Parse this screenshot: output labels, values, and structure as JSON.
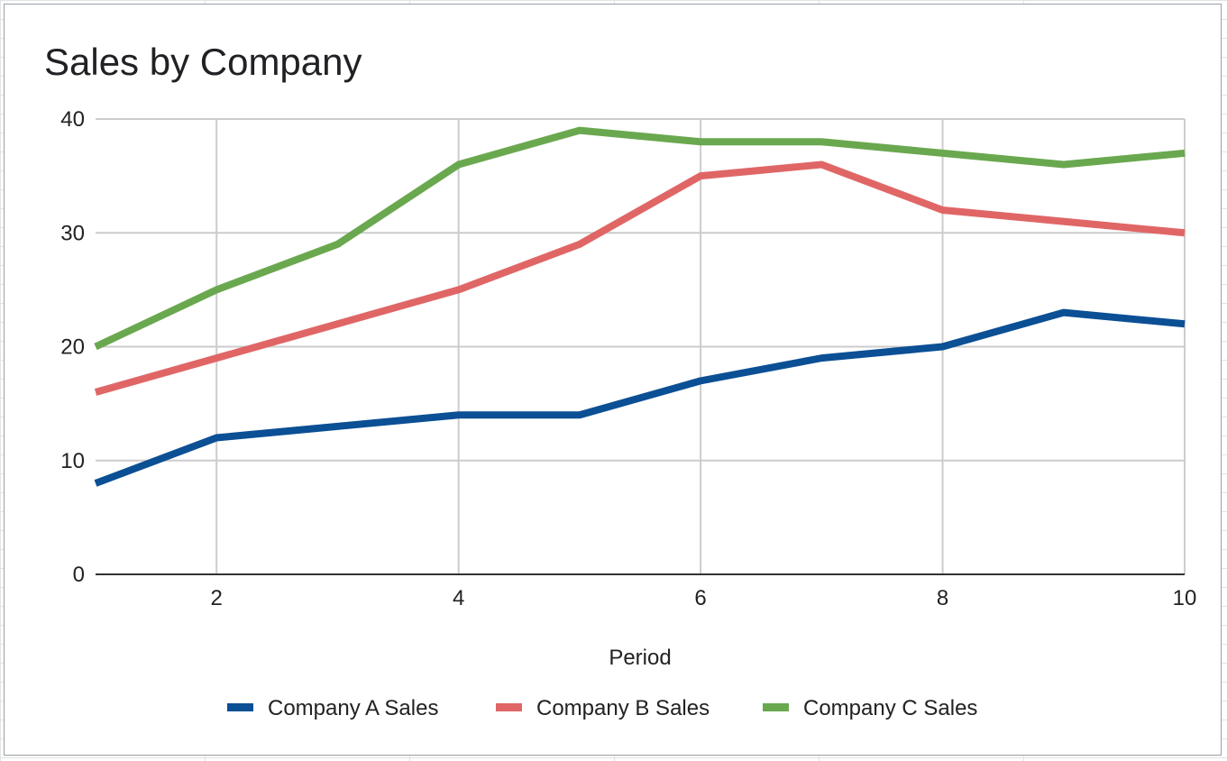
{
  "chart_data": {
    "type": "line",
    "title": "Sales by Company",
    "xlabel": "Period",
    "ylabel": "",
    "x": [
      1,
      2,
      3,
      4,
      5,
      6,
      7,
      8,
      9,
      10
    ],
    "xticks": [
      2,
      4,
      6,
      8,
      10
    ],
    "yticks": [
      0,
      10,
      20,
      30,
      40
    ],
    "xlim": [
      1,
      10
    ],
    "ylim": [
      0,
      40
    ],
    "grid": true,
    "legend_position": "bottom",
    "series": [
      {
        "name": "Company A Sales",
        "color": "#0b4f94",
        "values": [
          8,
          12,
          13,
          14,
          14,
          17,
          19,
          20,
          23,
          22
        ]
      },
      {
        "name": "Company B Sales",
        "color": "#e06666",
        "values": [
          16,
          19,
          22,
          25,
          29,
          35,
          36,
          32,
          31,
          30
        ]
      },
      {
        "name": "Company C Sales",
        "color": "#6aa84f",
        "values": [
          20,
          25,
          29,
          36,
          39,
          38,
          38,
          37,
          36,
          37
        ]
      }
    ]
  }
}
